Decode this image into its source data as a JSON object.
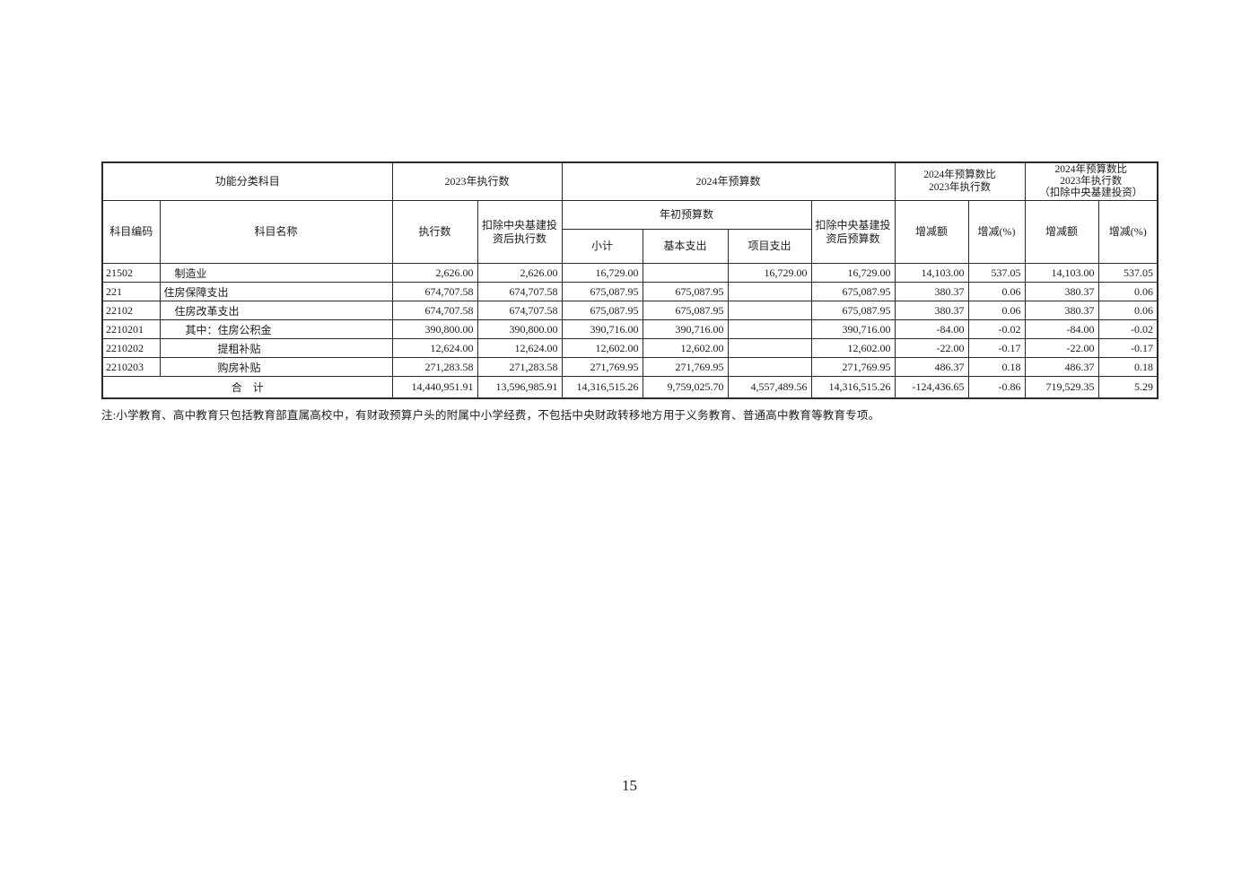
{
  "page": {
    "number": "15"
  },
  "note": "注:小学教育、高中教育只包括教育部直属高校中，有财政预算户头的附属中小学经费，不包括中央财政转移地方用于义务教育、普通高中教育等教育专项。",
  "table": {
    "header": {
      "group_functional": "功能分类科目",
      "group_exec_2023": "2023年执行数",
      "group_budget_2024": "2024年预算数",
      "group_compare": "2024年预算数比\n2023年执行数",
      "group_compare_excl": "2024年预算数比\n2023年执行数\n（扣除中央基建投资）",
      "col_code": "科目编码",
      "col_name": "科目名称",
      "col_exec": "执行数",
      "col_exec_excl": "扣除中央基建投\n资后执行数",
      "col_initial_budget": "年初预算数",
      "col_subtotal": "小计",
      "col_basic": "基本支出",
      "col_project": "项目支出",
      "col_budget_excl": "扣除中央基建投\n资后预算数",
      "col_change_amt_1": "增减额",
      "col_change_pct_1": "增减(%)",
      "col_change_amt_2": "增减额",
      "col_change_pct_2": "增减(%)"
    },
    "rows": [
      {
        "code": "21502",
        "name": "制造业",
        "indent": 1,
        "values": [
          "2,626.00",
          "2,626.00",
          "16,729.00",
          "",
          "16,729.00",
          "16,729.00",
          "14,103.00",
          "537.05",
          "14,103.00",
          "537.05"
        ]
      },
      {
        "code": "221",
        "name": "住房保障支出",
        "indent": 0,
        "values": [
          "674,707.58",
          "674,707.58",
          "675,087.95",
          "675,087.95",
          "",
          "675,087.95",
          "380.37",
          "0.06",
          "380.37",
          "0.06"
        ]
      },
      {
        "code": "22102",
        "name": "住房改革支出",
        "indent": 1,
        "values": [
          "674,707.58",
          "674,707.58",
          "675,087.95",
          "675,087.95",
          "",
          "675,087.95",
          "380.37",
          "0.06",
          "380.37",
          "0.06"
        ]
      },
      {
        "code": "2210201",
        "name": "其中：住房公积金",
        "indent": 2,
        "values": [
          "390,800.00",
          "390,800.00",
          "390,716.00",
          "390,716.00",
          "",
          "390,716.00",
          "-84.00",
          "-0.02",
          "-84.00",
          "-0.02"
        ]
      },
      {
        "code": "2210202",
        "name": "提租补贴",
        "indent": 5,
        "values": [
          "12,624.00",
          "12,624.00",
          "12,602.00",
          "12,602.00",
          "",
          "12,602.00",
          "-22.00",
          "-0.17",
          "-22.00",
          "-0.17"
        ]
      },
      {
        "code": "2210203",
        "name": "购房补贴",
        "indent": 5,
        "values": [
          "271,283.58",
          "271,283.58",
          "271,769.95",
          "271,769.95",
          "",
          "271,769.95",
          "486.37",
          "0.18",
          "486.37",
          "0.18"
        ]
      }
    ],
    "total": {
      "label": "合　计",
      "values": [
        "14,440,951.91",
        "13,596,985.91",
        "14,316,515.26",
        "9,759,025.70",
        "4,557,489.56",
        "14,316,515.26",
        "-124,436.65",
        "-0.86",
        "719,529.35",
        "5.29"
      ]
    }
  }
}
